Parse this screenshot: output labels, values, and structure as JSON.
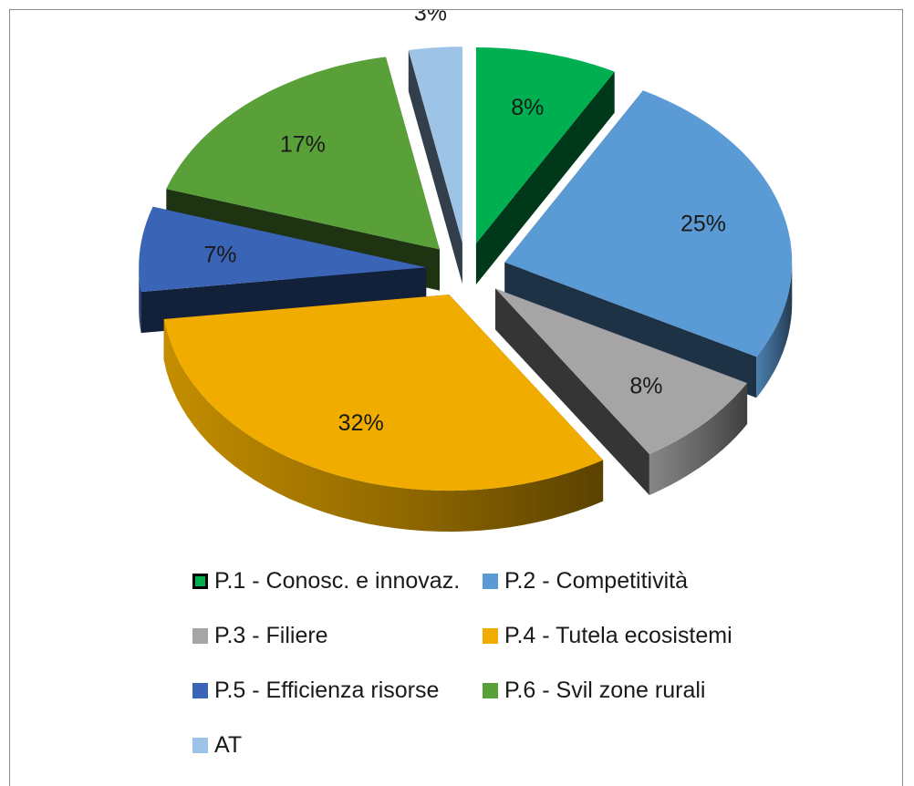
{
  "chart_data": {
    "type": "pie",
    "style": "3d-exploded",
    "categories": [
      "P.1 - Conosc. e innovaz.",
      "P.2 - Competitività",
      "P.3 - Filiere",
      "P.4 - Tutela ecosistemi",
      "P.5 - Efficienza risorse",
      "P.6 - Svil zone rurali",
      "AT"
    ],
    "values": [
      8,
      25,
      8,
      32,
      7,
      17,
      3
    ],
    "data_labels": [
      "8%",
      "25%",
      "8%",
      "32%",
      "7%",
      "17%",
      "3%"
    ],
    "colors": [
      "#00b050",
      "#5b9bd5",
      "#a5a5a5",
      "#f0ad00",
      "#3a64b6",
      "#5aa039",
      "#9dc3e6"
    ],
    "legend_position": "bottom"
  }
}
